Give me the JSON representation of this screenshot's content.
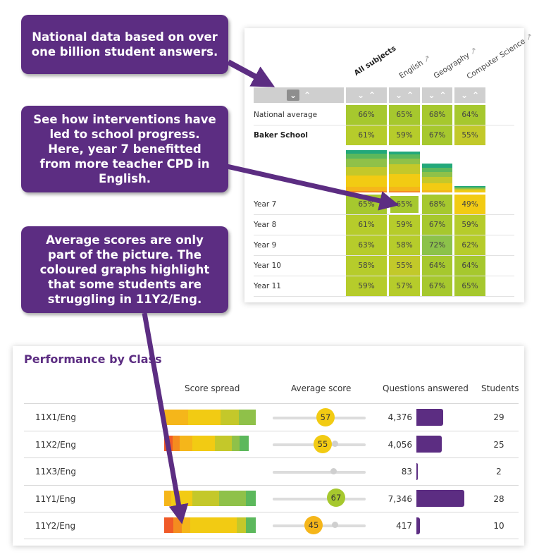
{
  "callouts": {
    "national": "National data based on over one billion student answers.",
    "interventions": "See how interventions have led to school progress. Here, year 7 benefitted from more teacher CPD in English.",
    "averages": "Average scores are only part of the picture. The coloured graphs highlight that some students are struggling in 11Y2/Eng."
  },
  "subject_grid": {
    "columns": [
      "All subjects",
      "English",
      "Geography",
      "Computer Science"
    ],
    "rows": [
      {
        "label": "National average",
        "bold": false,
        "values": [
          "66%",
          "65%",
          "68%",
          "64%"
        ],
        "colors": [
          "#a6c82e",
          "#a6c82e",
          "#a6c82e",
          "#a6c82e"
        ]
      },
      {
        "label": "Baker School",
        "bold": true,
        "values": [
          "61%",
          "59%",
          "67%",
          "55%"
        ],
        "colors": [
          "#b6cc2b",
          "#b6cc2b",
          "#a6c82e",
          "#c2c92a"
        ]
      },
      {
        "label": "Year 7",
        "bold": false,
        "values": [
          "65%",
          "65%",
          "68%",
          "49%"
        ],
        "colors": [
          "#a6c82e",
          "#a6c82e",
          "#a6c82e",
          "#f2cb13"
        ]
      },
      {
        "label": "Year 8",
        "bold": false,
        "values": [
          "61%",
          "59%",
          "67%",
          "59%"
        ],
        "colors": [
          "#b6cc2b",
          "#b6cc2b",
          "#a6c82e",
          "#b6cc2b"
        ]
      },
      {
        "label": "Year 9",
        "bold": false,
        "values": [
          "63%",
          "58%",
          "72%",
          "62%"
        ],
        "colors": [
          "#b6cc2b",
          "#b6cc2b",
          "#8cc24a",
          "#b6cc2b"
        ]
      },
      {
        "label": "Year 10",
        "bold": false,
        "values": [
          "58%",
          "55%",
          "64%",
          "64%"
        ],
        "colors": [
          "#b6cc2b",
          "#c2c92a",
          "#a6c82e",
          "#a6c82e"
        ]
      },
      {
        "label": "Year 11",
        "bold": false,
        "values": [
          "59%",
          "57%",
          "67%",
          "65%"
        ],
        "colors": [
          "#b6cc2b",
          "#b6cc2b",
          "#a6c82e",
          "#a6c82e"
        ]
      }
    ],
    "distribution_colors": [
      "#f05a28",
      "#f48c1f",
      "#f5b61a",
      "#f2cb13",
      "#c4c82a",
      "#8fc149",
      "#5cb85c",
      "#22a87a"
    ]
  },
  "performance": {
    "title": "Performance by Class",
    "headers": {
      "spread": "Score spread",
      "average": "Average score",
      "questions": "Questions answered",
      "students": "Students"
    },
    "rows": [
      {
        "class": "11X1/Eng",
        "average": "57",
        "avg_value": 57,
        "questions": "4,376",
        "q_value": 4376,
        "students": "29"
      },
      {
        "class": "11X2/Eng",
        "average": "55",
        "avg_value": 55,
        "questions": "4,056",
        "q_value": 4056,
        "students": "25"
      },
      {
        "class": "11X3/Eng",
        "average": "",
        "avg_value": null,
        "questions": "83",
        "q_value": 83,
        "students": "2"
      },
      {
        "class": "11Y1/Eng",
        "average": "67",
        "avg_value": 67,
        "questions": "7,346",
        "q_value": 7346,
        "students": "28"
      },
      {
        "class": "11Y2/Eng",
        "average": "45",
        "avg_value": 45,
        "questions": "417",
        "q_value": 417,
        "students": "10"
      }
    ]
  }
}
